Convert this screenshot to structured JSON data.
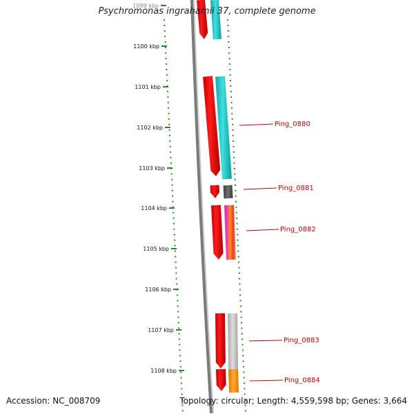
{
  "title": "Psychromonas ingrahamii 37, complete genome",
  "accession": "Accession: NC_008709",
  "topology": "Topology: circular; Length: 4,559,598 bp; Genes: 3,664",
  "ruler": [
    {
      "kbp": 1099,
      "label": "1099 kbp"
    },
    {
      "kbp": 1100,
      "label": "1100 kbp"
    },
    {
      "kbp": 1101,
      "label": "1101 kbp"
    },
    {
      "kbp": 1102,
      "label": "1102 kbp"
    },
    {
      "kbp": 1103,
      "label": "1103 kbp"
    },
    {
      "kbp": 1104,
      "label": "1104 kbp"
    },
    {
      "kbp": 1105,
      "label": "1105 kbp"
    },
    {
      "kbp": 1106,
      "label": "1106 kbp"
    },
    {
      "kbp": 1107,
      "label": "1107 kbp"
    },
    {
      "kbp": 1108,
      "label": "1108 kbp"
    }
  ],
  "gene_labels": [
    "Ping_0880",
    "Ping_0881",
    "Ping_0882",
    "Ping_0883",
    "Ping_0884"
  ],
  "colors": {
    "gene": "#ee0000",
    "label": "#cc0000",
    "ruler_tick": "#228b22",
    "backbone": "#7a7a7a",
    "cyan": "#17c9c9",
    "dark_gray": "#555555",
    "light_gray": "#c4c4c4",
    "orange": "#ff9900",
    "magenta": "#dd33cc"
  }
}
